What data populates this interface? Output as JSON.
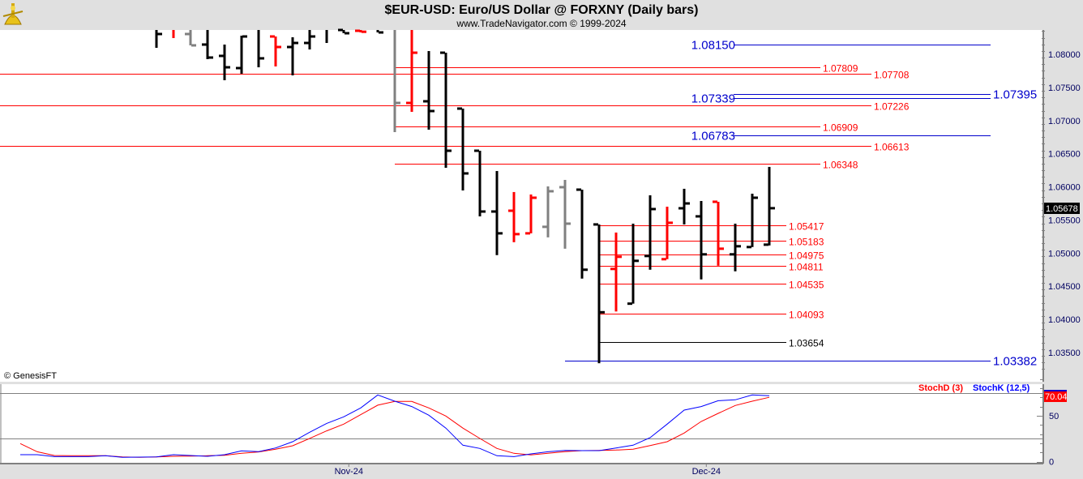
{
  "header": {
    "title": "$EUR-USD:  Euro/US Dollar @ FORXNY  (Daily bars)",
    "subtitle": "www.TradeNavigator.com © 1999-2024",
    "logo_icon": "sextant-logo-icon"
  },
  "watermark": "© GenesisFT",
  "colors": {
    "up": "#000000",
    "down": "#ff0000",
    "neutral": "#808080",
    "stochK": "#0000ff",
    "stochD": "#ff0000",
    "level_red": "#ff0000",
    "level_blue": "#0000cc",
    "level_black": "#000000"
  },
  "chart_data": [
    {
      "type": "ohlc",
      "title": "$EUR-USD:  Euro/US Dollar @ FORXNY  (Daily bars)",
      "ylim": [
        1.0325,
        1.0845
      ],
      "yticks": [
        "1.08000",
        "1.07500",
        "1.07000",
        "1.06500",
        "1.06000",
        "1.05500",
        "1.05000",
        "1.04500",
        "1.04000",
        "1.03500"
      ],
      "xticks": [
        {
          "label": "Nov-24",
          "bar": 11.3
        },
        {
          "label": "Dec-24",
          "bar": 32.3
        }
      ],
      "last_price": "1.05678",
      "bars": [
        {
          "o": null,
          "h": 1.08367,
          "l": 1.08098,
          "c": 1.08306,
          "color": "up"
        },
        {
          "o": null,
          "h": 1.08367,
          "l": 1.08245,
          "c": null,
          "color": "down"
        },
        {
          "o": 1.08306,
          "h": 1.08367,
          "l": 1.08135,
          "c": 1.08135,
          "color": "neutral"
        },
        {
          "o": 1.08147,
          "h": 1.08367,
          "l": 1.07927,
          "c": 1.07951,
          "color": "up"
        },
        {
          "o": 1.07976,
          "h": 1.08147,
          "l": 1.07609,
          "c": 1.07804,
          "color": "up"
        },
        {
          "o": 1.07792,
          "h": 1.08281,
          "l": 1.07707,
          "c": 1.08269,
          "color": "up"
        },
        {
          "o": null,
          "h": 1.08367,
          "l": 1.07804,
          "c": 1.07939,
          "color": "up"
        },
        {
          "o": 1.08269,
          "h": 1.08269,
          "l": 1.07817,
          "c": 1.0811,
          "color": "down"
        },
        {
          "o": 1.0811,
          "h": 1.08257,
          "l": 1.07682,
          "c": 1.08171,
          "color": "up"
        },
        {
          "o": 1.08171,
          "h": 1.08367,
          "l": 1.08073,
          "c": 1.08269,
          "color": "up"
        },
        {
          "o": null,
          "h": 1.08367,
          "l": 1.08171,
          "c": null,
          "color": "up"
        },
        {
          "o": 1.08367,
          "h": 1.08367,
          "l": 1.08318,
          "c": 1.08318,
          "color": "up"
        },
        {
          "o": 1.08355,
          "h": 1.08367,
          "l": 1.0833,
          "c": 1.0834,
          "color": "down"
        },
        {
          "o": null,
          "h": 1.08367,
          "l": 1.0833,
          "c": 1.0833,
          "color": "up"
        },
        {
          "o": null,
          "h": 1.08367,
          "l": 1.06826,
          "c": 1.07266,
          "color": "neutral"
        },
        {
          "o": 1.07266,
          "h": 1.08367,
          "l": 1.07132,
          "c": 1.08024,
          "color": "down"
        },
        {
          "o": 1.07291,
          "h": 1.08049,
          "l": 1.06863,
          "c": 1.07144,
          "color": "up"
        },
        {
          "o": 1.08024,
          "h": 1.08024,
          "l": 1.06288,
          "c": 1.06545,
          "color": "up"
        },
        {
          "o": 1.07181,
          "h": 1.07181,
          "l": 1.05946,
          "c": 1.06203,
          "color": "up"
        },
        {
          "o": 1.06545,
          "h": 1.06545,
          "l": 1.05555,
          "c": 1.05628,
          "color": "up"
        },
        {
          "o": 1.05628,
          "h": 1.06239,
          "l": 1.0497,
          "c": 1.05299,
          "color": "up"
        },
        {
          "o": 1.0564,
          "h": 1.05922,
          "l": 1.05165,
          "c": 1.05287,
          "color": "down"
        },
        {
          "o": 1.05299,
          "h": 1.05885,
          "l": 1.05299,
          "c": 1.05836,
          "color": "down"
        },
        {
          "o": 1.05397,
          "h": 1.06007,
          "l": 1.05238,
          "c": 1.05934,
          "color": "neutral"
        },
        {
          "o": 1.05995,
          "h": 1.06105,
          "l": 1.05067,
          "c": 1.05445,
          "color": "neutral"
        },
        {
          "o": 1.05958,
          "h": 1.05958,
          "l": 1.04616,
          "c": 1.0475,
          "color": "up"
        },
        {
          "o": 1.05433,
          "h": 1.05433,
          "l": 1.03339,
          "c": 1.04108,
          "color": "up"
        },
        {
          "o": 1.04762,
          "h": 1.05311,
          "l": 1.0412,
          "c": 1.04945,
          "color": "down"
        },
        {
          "o": 1.04238,
          "h": 1.05445,
          "l": 1.04238,
          "c": 1.04884,
          "color": "up"
        },
        {
          "o": 1.04957,
          "h": 1.05873,
          "l": 1.0475,
          "c": 1.05665,
          "color": "up"
        },
        {
          "o": 1.04909,
          "h": 1.05701,
          "l": 1.04909,
          "c": 1.05458,
          "color": "down"
        },
        {
          "o": 1.05677,
          "h": 1.05971,
          "l": 1.05433,
          "c": 1.0575,
          "color": "up"
        },
        {
          "o": 1.05555,
          "h": 1.05787,
          "l": 1.04604,
          "c": 1.04982,
          "color": "up"
        },
        {
          "o": 1.05775,
          "h": 1.05775,
          "l": 1.04811,
          "c": 1.05067,
          "color": "down"
        },
        {
          "o": 1.04982,
          "h": 1.05445,
          "l": 1.04726,
          "c": 1.05104,
          "color": "up"
        },
        {
          "o": 1.05092,
          "h": 1.05897,
          "l": 1.05092,
          "c": 1.05836,
          "color": "up"
        },
        {
          "o": 1.05128,
          "h": 1.06301,
          "l": 1.05116,
          "c": 1.05678,
          "color": "up"
        }
      ],
      "levels": [
        {
          "price": 1.0815,
          "label": "1.08150",
          "color": "level_blue",
          "set": "fib-blue"
        },
        {
          "price": 1.07809,
          "label": "1.07809",
          "color": "level_red",
          "set": "mid"
        },
        {
          "price": 1.07708,
          "label": "1.07708",
          "color": "level_red",
          "set": "full"
        },
        {
          "price": 1.07395,
          "label": "1.07395",
          "color": "level_blue",
          "set": "fib-blue-right"
        },
        {
          "price": 1.07339,
          "label": "1.07339",
          "color": "level_blue",
          "set": "fib-blue"
        },
        {
          "price": 1.07226,
          "label": "1.07226",
          "color": "level_red",
          "set": "full"
        },
        {
          "price": 1.06909,
          "label": "1.06909",
          "color": "level_red",
          "set": "mid"
        },
        {
          "price": 1.06783,
          "label": "1.06783",
          "color": "level_blue",
          "set": "fib-blue"
        },
        {
          "price": 1.06613,
          "label": "1.06613",
          "color": "level_red",
          "set": "full"
        },
        {
          "price": 1.06348,
          "label": "1.06348",
          "color": "level_red",
          "set": "mid"
        },
        {
          "price": 1.05417,
          "label": "1.05417",
          "color": "level_red",
          "set": "low"
        },
        {
          "price": 1.05183,
          "label": "1.05183",
          "color": "level_red",
          "set": "low"
        },
        {
          "price": 1.04975,
          "label": "1.04975",
          "color": "level_red",
          "set": "low"
        },
        {
          "price": 1.04811,
          "label": "1.04811",
          "color": "level_red",
          "set": "low"
        },
        {
          "price": 1.04535,
          "label": "1.04535",
          "color": "level_red",
          "set": "low"
        },
        {
          "price": 1.04093,
          "label": "1.04093",
          "color": "level_red",
          "set": "low"
        },
        {
          "price": 1.03654,
          "label": "1.03654",
          "color": "level_black",
          "set": "low"
        },
        {
          "price": 1.03382,
          "label": "1.03382",
          "color": "level_blue",
          "set": "bottom"
        }
      ]
    },
    {
      "type": "line",
      "ylim": [
        0,
        100
      ],
      "yticks": [
        "50",
        "0"
      ],
      "guide_levels": [
        25,
        75
      ],
      "last_value": "70.04",
      "series": [
        {
          "name": "StochD (3)",
          "color": "stochD",
          "values": [
            19.7,
            10.8,
            6.7,
            6.4,
            6.4,
            6.4,
            5.2,
            4.7,
            5.2,
            5.8,
            6.1,
            6.4,
            7.0,
            9.1,
            10.6,
            13.5,
            17.3,
            25.3,
            33.5,
            40.9,
            51.2,
            61.5,
            65.6,
            65.6,
            58.5,
            49.7,
            36.5,
            25.2,
            14.4,
            9.1,
            7.3,
            9.1,
            10.9,
            12.0,
            12.3,
            12.6,
            13.5,
            17.6,
            21.7,
            31.2,
            43.8,
            52.6,
            61.2,
            65.8,
            70.04
          ]
        },
        {
          "name": "StochK (12,5)",
          "color": "stochK",
          "values": [
            7.6,
            7.6,
            5.5,
            5.5,
            5.5,
            6.4,
            4.7,
            4.9,
            5.2,
            7.6,
            6.7,
            5.8,
            7.6,
            11.7,
            10.9,
            14.9,
            21.7,
            32.0,
            41.7,
            48.8,
            58.5,
            72.6,
            65.8,
            60.0,
            50.6,
            36.5,
            17.9,
            14.4,
            6.4,
            5.5,
            8.5,
            10.8,
            12.3,
            12.0,
            12.0,
            14.9,
            17.9,
            26.1,
            40.9,
            56.1,
            60.0,
            66.4,
            67.3,
            72.6,
            71.8
          ]
        }
      ]
    }
  ]
}
